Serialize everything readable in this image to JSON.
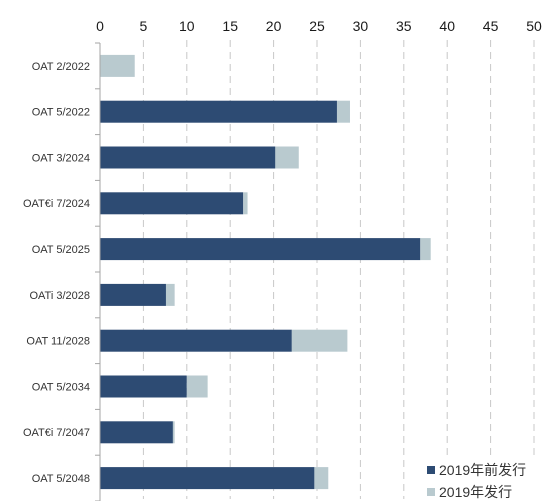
{
  "chart_data": {
    "type": "bar",
    "orientation": "horizontal",
    "stacked": true,
    "categories": [
      "OAT 2/2022",
      "OAT 5/2022",
      "OAT 3/2024",
      "OAT€i 7/2024",
      "OAT 5/2025",
      "OATi 3/2028",
      "OAT 11/2028",
      "OAT 5/2034",
      "OAT€i 7/2047",
      "OAT 5/2048"
    ],
    "series": [
      {
        "name": "2019年前发行",
        "color": "#2d4b73",
        "values": [
          0,
          27.3,
          20.2,
          16.5,
          36.9,
          7.6,
          22.1,
          10.0,
          8.4,
          24.7
        ]
      },
      {
        "name": "2019年发行",
        "color": "#b9cacf",
        "values": [
          4.0,
          1.5,
          2.7,
          0.5,
          1.2,
          1.0,
          6.4,
          2.4,
          0.2,
          1.6
        ]
      }
    ],
    "xlim": [
      0,
      50
    ],
    "x_ticks": [
      0,
      5,
      10,
      15,
      20,
      25,
      30,
      35,
      40,
      45,
      50
    ],
    "x_axis_position": "top",
    "grid": "vertical dashed",
    "legend_position": "bottom-right"
  }
}
